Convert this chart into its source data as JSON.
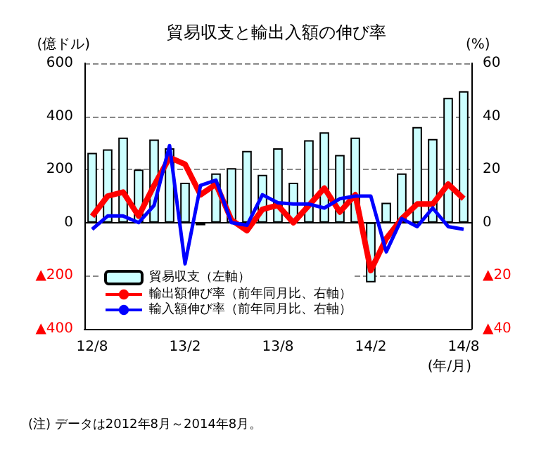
{
  "chart_data": {
    "type": "bar",
    "title": "貿易収支と輸出入額の伸び率",
    "ylabel": "(億ドル)",
    "y2label": "(%)",
    "xlabel": "(年/月)",
    "annotations": [
      "(注) データは2012年8月～2014年8月。"
    ],
    "categories": [
      "12/8",
      null,
      null,
      null,
      null,
      null,
      "13/2",
      null,
      null,
      null,
      null,
      null,
      "13/8",
      null,
      null,
      null,
      null,
      null,
      "14/2",
      null,
      null,
      null,
      null,
      null,
      "14/8"
    ],
    "series": [
      {
        "name": "貿易収支（左軸）",
        "color": "#ccffff",
        "values": [
          263,
          276,
          320,
          200,
          313,
          280,
          150,
          -10,
          185,
          205,
          270,
          180,
          280,
          150,
          310,
          340,
          255,
          320,
          -225,
          75,
          185,
          360,
          315,
          470,
          495
        ]
      },
      {
        "name": "輸出額伸び率（前年同月比、右軸）",
        "type": "line",
        "axis": "y2",
        "color": "#ff0000",
        "values": [
          2.4,
          10,
          11.5,
          2.5,
          14,
          24.5,
          22,
          10.5,
          14.5,
          1,
          -3,
          5,
          6.5,
          0,
          6.5,
          13,
          4,
          10.5,
          -18,
          -6,
          1.5,
          7,
          7,
          14.5,
          9
        ]
      },
      {
        "name": "輸入額伸び率（前年同月比、右軸）",
        "type": "line",
        "axis": "y2",
        "color": "#0000ff",
        "values": [
          -2.5,
          2.5,
          2.5,
          0,
          6.5,
          29,
          -15.5,
          14,
          16,
          0,
          -1,
          10.5,
          7.5,
          7,
          7,
          5.5,
          9,
          10,
          10,
          -11,
          1.5,
          -1.5,
          5.5,
          -1.5,
          -2.5
        ]
      }
    ],
    "ylim": [
      -400,
      600
    ],
    "yticks": [
      {
        "value": -400,
        "label": "▲400"
      },
      {
        "value": -200,
        "label": "▲200"
      },
      0,
      200,
      400,
      600
    ],
    "y2lim": [
      -40,
      60
    ],
    "y2ticks": [
      {
        "value": -40,
        "label": "▲40"
      },
      {
        "value": -20,
        "label": "▲20"
      },
      0,
      20,
      40,
      60
    ],
    "grid": "y",
    "legend": "bottom left",
    "marker": "none"
  }
}
